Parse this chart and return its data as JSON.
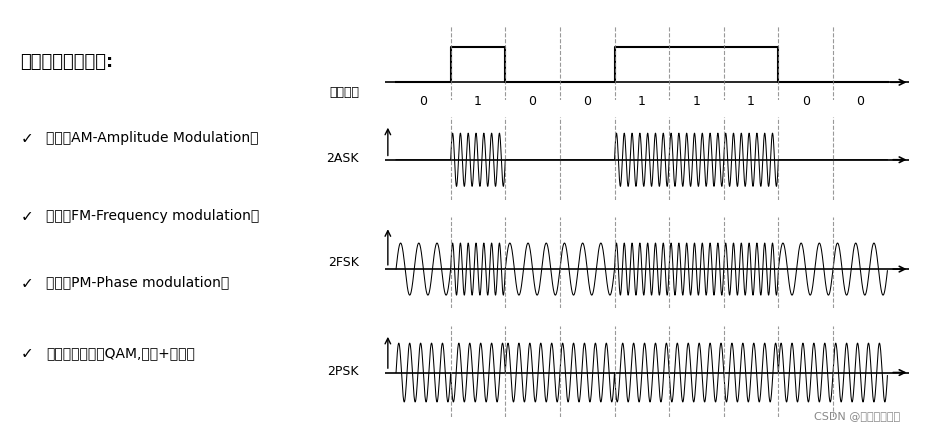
{
  "background_color": "#ffffff",
  "bits": [
    0,
    1,
    0,
    0,
    1,
    1,
    1,
    0,
    0
  ],
  "baseband_label": "基带信号",
  "ask_label": "2ASK",
  "fsk_label": "2FSK",
  "psk_label": "2PSK",
  "left_title": "常用带通调制方式:",
  "left_items": [
    [
      "✓",
      "调幅（AM-Amplitude Modulation）"
    ],
    [
      "✓",
      "调频（FM-Frequency modulation）"
    ],
    [
      "✓",
      "调相（PM-Phase modulation）"
    ],
    [
      "✓",
      "正交振幅调制（QAM,调幅+调相）"
    ]
  ],
  "watermark": "CSDN @我嘻个乖乖鹅",
  "ask_freq_high": 7,
  "fsk_freq_high": 7,
  "fsk_freq_low": 3,
  "psk_freq": 5,
  "n_bits": 9,
  "samples_per_bit": 300,
  "dashed_positions": [
    1,
    2,
    3,
    4,
    5,
    6,
    7,
    8
  ]
}
